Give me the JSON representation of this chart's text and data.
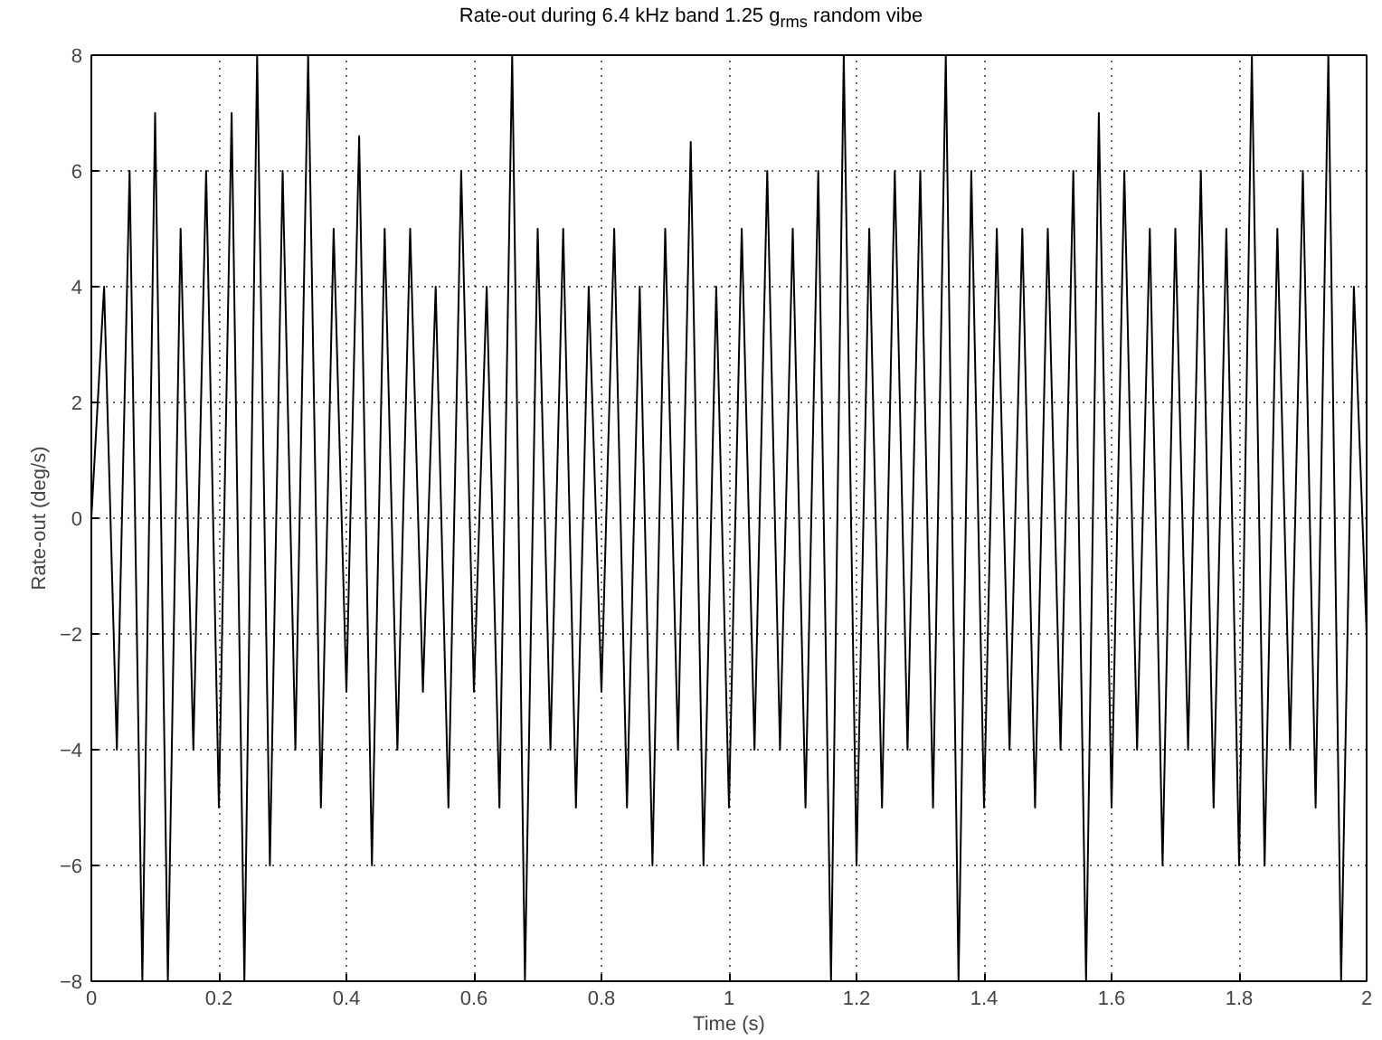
{
  "chart_data": {
    "type": "line",
    "title": "Rate-out during 6.4 kHz band 1.25 g$_{rms}$ random vibe",
    "xlabel": "Time (s)",
    "ylabel": "Rate-out (deg/s)",
    "x": [
      0,
      0.02,
      0.04,
      0.06,
      0.08,
      0.1,
      0.12,
      0.14,
      0.16,
      0.18,
      0.2,
      0.22,
      0.24,
      0.26,
      0.28,
      0.3,
      0.32,
      0.34,
      0.36,
      0.38,
      0.4,
      0.42,
      0.44,
      0.46,
      0.48,
      0.5,
      0.52,
      0.54,
      0.56,
      0.58,
      0.6,
      0.62,
      0.64,
      0.66,
      0.68,
      0.7,
      0.72,
      0.74,
      0.76,
      0.78,
      0.8,
      0.82,
      0.84,
      0.86,
      0.88,
      0.9,
      0.92,
      0.94,
      0.96,
      0.98,
      1,
      1.02,
      1.04,
      1.06,
      1.08,
      1.1,
      1.12,
      1.14,
      1.16,
      1.18,
      1.2,
      1.22,
      1.24,
      1.26,
      1.28,
      1.3,
      1.32,
      1.34,
      1.36,
      1.38,
      1.4,
      1.42,
      1.44,
      1.46,
      1.48,
      1.5,
      1.52,
      1.54,
      1.56,
      1.58,
      1.6,
      1.62,
      1.64,
      1.66,
      1.68,
      1.7,
      1.72,
      1.74,
      1.76,
      1.78,
      1.8,
      1.82,
      1.84,
      1.86,
      1.88,
      1.9,
      1.92,
      1.94,
      1.96,
      1.98,
      2
    ],
    "series": [
      {
        "color": "#000000",
        "values": [
          0,
          4,
          -4,
          6,
          -8,
          7,
          -8,
          5,
          -4,
          6,
          -5,
          7,
          -8,
          8,
          -6,
          6,
          -4,
          8,
          -5,
          5,
          -3,
          6.6,
          -6,
          5,
          -4,
          5,
          -3,
          4,
          -5,
          6,
          -3,
          4,
          -5,
          8,
          -8,
          5,
          -4,
          5,
          -5,
          4,
          -3,
          5,
          -5,
          4,
          -6,
          5,
          -4,
          6.5,
          -6,
          4,
          -5,
          5,
          -4,
          6,
          -4,
          5,
          -5,
          6,
          -8,
          8,
          -6,
          5,
          -5,
          6,
          -4,
          6,
          -5,
          8,
          -8,
          6,
          -5,
          5,
          -4,
          5,
          -5,
          5,
          -4,
          6,
          -8,
          7,
          -5,
          6,
          -4,
          5,
          -6,
          5,
          -4,
          6,
          -5,
          5,
          -6,
          8,
          -6,
          5,
          -4,
          6,
          -5,
          8,
          -8,
          4,
          -2
        ]
      }
    ],
    "xlim": [
      0,
      2
    ],
    "ylim": [
      -8,
      8
    ],
    "xticks": [
      0,
      0.2,
      0.4,
      0.6,
      0.8,
      1,
      1.2,
      1.4,
      1.6,
      1.8,
      2
    ],
    "yticks": [
      -8,
      -6,
      -4,
      -2,
      0,
      2,
      4,
      6,
      8
    ],
    "grid": true,
    "marker": "none",
    "line_style": "solid"
  }
}
